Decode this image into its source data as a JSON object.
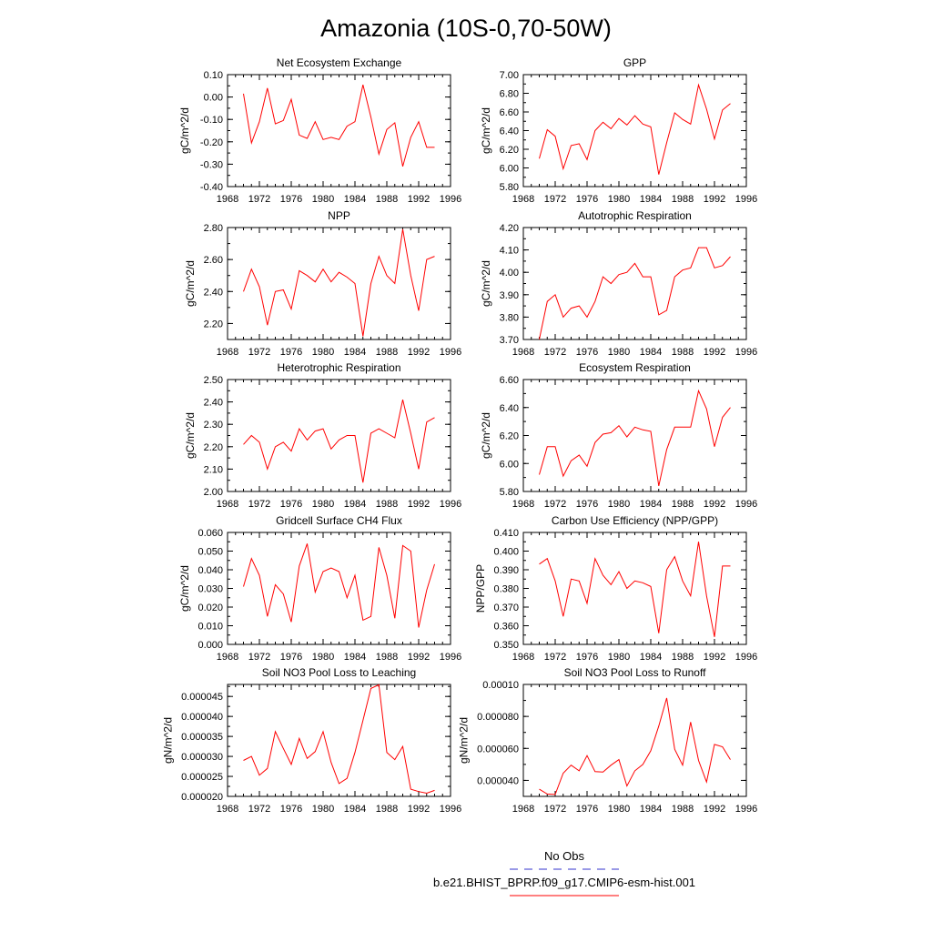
{
  "figure": {
    "title": "Amazonia (10S-0,70-50W)"
  },
  "legend": {
    "items": [
      {
        "label": "No Obs",
        "color": "#3333cc",
        "style": "dashed"
      },
      {
        "label": "b.e21.BHIST_BPRP.f09_g17.CMIP6-esm-hist.001",
        "color": "#ff0000",
        "style": "solid"
      }
    ]
  },
  "chart_data": [
    {
      "type": "line",
      "title": "Net Ecosystem Exchange",
      "ylabel": "gC/m^2/d",
      "xlim": [
        1968,
        1996
      ],
      "xticks": [
        "1968",
        "1972",
        "1976",
        "1980",
        "1984",
        "1988",
        "1992",
        "1996"
      ],
      "ylim": [
        -0.4,
        0.1
      ],
      "yticks": [
        "-0.40",
        "-0.30",
        "-0.20",
        "-0.10",
        "0.00",
        "0.10"
      ],
      "x": [
        1970,
        1971,
        1972,
        1973,
        1974,
        1975,
        1976,
        1977,
        1978,
        1979,
        1980,
        1981,
        1982,
        1983,
        1984,
        1985,
        1986,
        1987,
        1988,
        1989,
        1990,
        1991,
        1992,
        1993,
        1994
      ],
      "series": [
        {
          "color": "#ff0000",
          "values": [
            0.015,
            -0.205,
            -0.11,
            0.04,
            -0.12,
            -0.105,
            -0.01,
            -0.17,
            -0.185,
            -0.11,
            -0.19,
            -0.18,
            -0.19,
            -0.13,
            -0.11,
            0.055,
            -0.09,
            -0.255,
            -0.145,
            -0.115,
            -0.31,
            -0.18,
            -0.11,
            -0.225,
            -0.225
          ]
        }
      ]
    },
    {
      "type": "line",
      "title": "GPP",
      "ylabel": "gC/m^2/d",
      "xlim": [
        1968,
        1996
      ],
      "xticks": [
        "1968",
        "1972",
        "1976",
        "1980",
        "1984",
        "1988",
        "1992",
        "1996"
      ],
      "ylim": [
        5.8,
        7.0
      ],
      "yticks": [
        "5.80",
        "6.00",
        "6.20",
        "6.40",
        "6.60",
        "6.80",
        "7.00"
      ],
      "x": [
        1970,
        1971,
        1972,
        1973,
        1974,
        1975,
        1976,
        1977,
        1978,
        1979,
        1980,
        1981,
        1982,
        1983,
        1984,
        1985,
        1986,
        1987,
        1988,
        1989,
        1990,
        1991,
        1992,
        1993,
        1994
      ],
      "series": [
        {
          "color": "#ff0000",
          "values": [
            6.1,
            6.41,
            6.34,
            5.99,
            6.24,
            6.26,
            6.09,
            6.4,
            6.49,
            6.42,
            6.53,
            6.46,
            6.56,
            6.47,
            6.44,
            5.93,
            6.27,
            6.59,
            6.52,
            6.47,
            6.89,
            6.63,
            6.31,
            6.62,
            6.69
          ]
        }
      ]
    },
    {
      "type": "line",
      "title": "NPP",
      "ylabel": "gC/m^2/d",
      "xlim": [
        1968,
        1996
      ],
      "xticks": [
        "1968",
        "1972",
        "1976",
        "1980",
        "1984",
        "1988",
        "1992",
        "1996"
      ],
      "ylim": [
        2.1,
        2.8
      ],
      "yticks": [
        "2.20",
        "2.40",
        "2.60",
        "2.80"
      ],
      "x": [
        1970,
        1971,
        1972,
        1973,
        1974,
        1975,
        1976,
        1977,
        1978,
        1979,
        1980,
        1981,
        1982,
        1983,
        1984,
        1985,
        1986,
        1987,
        1988,
        1989,
        1990,
        1991,
        1992,
        1993,
        1994
      ],
      "series": [
        {
          "color": "#ff0000",
          "values": [
            2.4,
            2.54,
            2.43,
            2.19,
            2.4,
            2.41,
            2.29,
            2.53,
            2.5,
            2.46,
            2.54,
            2.46,
            2.52,
            2.49,
            2.45,
            2.12,
            2.45,
            2.62,
            2.5,
            2.45,
            2.79,
            2.5,
            2.28,
            2.6,
            2.62
          ]
        }
      ]
    },
    {
      "type": "line",
      "title": "Autotrophic Respiration",
      "ylabel": "gC/m^2/d",
      "xlim": [
        1968,
        1996
      ],
      "xticks": [
        "1968",
        "1972",
        "1976",
        "1980",
        "1984",
        "1988",
        "1992",
        "1996"
      ],
      "ylim": [
        3.7,
        4.2
      ],
      "yticks": [
        "3.70",
        "3.80",
        "3.90",
        "4.00",
        "4.10",
        "4.20"
      ],
      "x": [
        1970,
        1971,
        1972,
        1973,
        1974,
        1975,
        1976,
        1977,
        1978,
        1979,
        1980,
        1981,
        1982,
        1983,
        1984,
        1985,
        1986,
        1987,
        1988,
        1989,
        1990,
        1991,
        1992,
        1993,
        1994
      ],
      "series": [
        {
          "color": "#ff0000",
          "values": [
            3.7,
            3.87,
            3.9,
            3.8,
            3.84,
            3.85,
            3.8,
            3.87,
            3.98,
            3.95,
            3.99,
            4.0,
            4.04,
            3.98,
            3.98,
            3.81,
            3.83,
            3.98,
            4.01,
            4.02,
            4.11,
            4.11,
            4.02,
            4.03,
            4.07
          ]
        }
      ]
    },
    {
      "type": "line",
      "title": "Heterotrophic Respiration",
      "ylabel": "gC/m^2/d",
      "xlim": [
        1968,
        1996
      ],
      "xticks": [
        "1968",
        "1972",
        "1976",
        "1980",
        "1984",
        "1988",
        "1992",
        "1996"
      ],
      "ylim": [
        2.0,
        2.5
      ],
      "yticks": [
        "2.00",
        "2.10",
        "2.20",
        "2.30",
        "2.40",
        "2.50"
      ],
      "x": [
        1970,
        1971,
        1972,
        1973,
        1974,
        1975,
        1976,
        1977,
        1978,
        1979,
        1980,
        1981,
        1982,
        1983,
        1984,
        1985,
        1986,
        1987,
        1988,
        1989,
        1990,
        1991,
        1992,
        1993,
        1994
      ],
      "series": [
        {
          "color": "#ff0000",
          "values": [
            2.21,
            2.25,
            2.22,
            2.1,
            2.2,
            2.22,
            2.18,
            2.28,
            2.23,
            2.27,
            2.28,
            2.19,
            2.23,
            2.25,
            2.25,
            2.04,
            2.26,
            2.28,
            2.26,
            2.24,
            2.41,
            2.26,
            2.1,
            2.31,
            2.33
          ]
        }
      ]
    },
    {
      "type": "line",
      "title": "Ecosystem Respiration",
      "ylabel": "gC/m^2/d",
      "xlim": [
        1968,
        1996
      ],
      "xticks": [
        "1968",
        "1972",
        "1976",
        "1980",
        "1984",
        "1988",
        "1992",
        "1996"
      ],
      "ylim": [
        5.8,
        6.6
      ],
      "yticks": [
        "5.80",
        "6.00",
        "6.20",
        "6.40",
        "6.60"
      ],
      "x": [
        1970,
        1971,
        1972,
        1973,
        1974,
        1975,
        1976,
        1977,
        1978,
        1979,
        1980,
        1981,
        1982,
        1983,
        1984,
        1985,
        1986,
        1987,
        1988,
        1989,
        1990,
        1991,
        1992,
        1993,
        1994
      ],
      "series": [
        {
          "color": "#ff0000",
          "values": [
            5.92,
            6.12,
            6.12,
            5.91,
            6.02,
            6.06,
            5.98,
            6.15,
            6.21,
            6.22,
            6.27,
            6.19,
            6.26,
            6.24,
            6.23,
            5.84,
            6.1,
            6.26,
            6.26,
            6.26,
            6.52,
            6.39,
            6.12,
            6.33,
            6.4
          ]
        }
      ]
    },
    {
      "type": "line",
      "title": "Gridcell Surface CH4 Flux",
      "ylabel": "gC/m^2/d",
      "xlim": [
        1968,
        1996
      ],
      "xticks": [
        "1968",
        "1972",
        "1976",
        "1980",
        "1984",
        "1988",
        "1992",
        "1996"
      ],
      "ylim": [
        0.0,
        0.06
      ],
      "yticks": [
        "0.000",
        "0.010",
        "0.020",
        "0.030",
        "0.040",
        "0.050",
        "0.060"
      ],
      "x": [
        1970,
        1971,
        1972,
        1973,
        1974,
        1975,
        1976,
        1977,
        1978,
        1979,
        1980,
        1981,
        1982,
        1983,
        1984,
        1985,
        1986,
        1987,
        1988,
        1989,
        1990,
        1991,
        1992,
        1993,
        1994
      ],
      "series": [
        {
          "color": "#ff0000",
          "values": [
            0.031,
            0.046,
            0.037,
            0.015,
            0.032,
            0.027,
            0.012,
            0.042,
            0.054,
            0.028,
            0.039,
            0.041,
            0.039,
            0.025,
            0.037,
            0.013,
            0.015,
            0.052,
            0.037,
            0.014,
            0.053,
            0.05,
            0.009,
            0.029,
            0.043
          ]
        }
      ]
    },
    {
      "type": "line",
      "title": "Carbon Use Efficiency (NPP/GPP)",
      "ylabel": "NPP/GPP",
      "xlim": [
        1968,
        1996
      ],
      "xticks": [
        "1968",
        "1972",
        "1976",
        "1980",
        "1984",
        "1988",
        "1992",
        "1996"
      ],
      "ylim": [
        0.35,
        0.41
      ],
      "yticks": [
        "0.350",
        "0.360",
        "0.370",
        "0.380",
        "0.390",
        "0.400",
        "0.410"
      ],
      "x": [
        1970,
        1971,
        1972,
        1973,
        1974,
        1975,
        1976,
        1977,
        1978,
        1979,
        1980,
        1981,
        1982,
        1983,
        1984,
        1985,
        1986,
        1987,
        1988,
        1989,
        1990,
        1991,
        1992,
        1993,
        1994
      ],
      "series": [
        {
          "color": "#ff0000",
          "values": [
            0.393,
            0.396,
            0.384,
            0.365,
            0.385,
            0.384,
            0.372,
            0.396,
            0.387,
            0.382,
            0.389,
            0.38,
            0.384,
            0.383,
            0.381,
            0.356,
            0.39,
            0.397,
            0.384,
            0.376,
            0.405,
            0.376,
            0.354,
            0.392,
            0.392
          ]
        }
      ]
    },
    {
      "type": "line",
      "title": "Soil NO3 Pool Loss to Leaching",
      "ylabel": "gN/m^2/d",
      "xlim": [
        1968,
        1996
      ],
      "xticks": [
        "1968",
        "1972",
        "1976",
        "1980",
        "1984",
        "1988",
        "1992",
        "1996"
      ],
      "ylim": [
        2e-05,
        4.8e-05
      ],
      "yticks": [
        "0.000020",
        "0.000025",
        "0.000030",
        "0.000035",
        "0.000040",
        "0.000045"
      ],
      "x": [
        1970,
        1971,
        1972,
        1973,
        1974,
        1975,
        1976,
        1977,
        1978,
        1979,
        1980,
        1981,
        1982,
        1983,
        1984,
        1985,
        1986,
        1987,
        1988,
        1989,
        1990,
        1991,
        1992,
        1993,
        1994
      ],
      "series": [
        {
          "color": "#ff0000",
          "values": [
            2.9e-05,
            3e-05,
            2.53e-05,
            2.7e-05,
            3.62e-05,
            3.2e-05,
            2.8e-05,
            3.45e-05,
            2.95e-05,
            3.12e-05,
            3.62e-05,
            2.85e-05,
            2.32e-05,
            2.45e-05,
            3.1e-05,
            3.9e-05,
            4.7e-05,
            4.79e-05,
            3.1e-05,
            2.92e-05,
            3.25e-05,
            2.18e-05,
            2.12e-05,
            2.08e-05,
            2.15e-05
          ]
        }
      ]
    },
    {
      "type": "line",
      "title": "Soil NO3 Pool Loss to Runoff",
      "ylabel": "gN/m^2/d",
      "xlim": [
        1968,
        1996
      ],
      "xticks": [
        "1968",
        "1972",
        "1976",
        "1980",
        "1984",
        "1988",
        "1992",
        "1996"
      ],
      "ylim": [
        3e-05,
        0.0001
      ],
      "yticks": [
        "0.000040",
        "0.000060",
        "0.000080",
        "0.00010"
      ],
      "x": [
        1970,
        1971,
        1972,
        1973,
        1974,
        1975,
        1976,
        1977,
        1978,
        1979,
        1980,
        1981,
        1982,
        1983,
        1984,
        1985,
        1986,
        1987,
        1988,
        1989,
        1990,
        1991,
        1992,
        1993,
        1994
      ],
      "series": [
        {
          "color": "#ff0000",
          "values": [
            3.45e-05,
            3.15e-05,
            3.12e-05,
            4.45e-05,
            4.95e-05,
            4.6e-05,
            5.55e-05,
            4.55e-05,
            4.52e-05,
            4.95e-05,
            5.3e-05,
            3.65e-05,
            4.6e-05,
            5e-05,
            5.85e-05,
            7.4e-05,
            9.15e-05,
            5.95e-05,
            4.95e-05,
            7.65e-05,
            5.25e-05,
            3.9e-05,
            6.25e-05,
            6.1e-05,
            5.3e-05
          ]
        }
      ]
    }
  ]
}
